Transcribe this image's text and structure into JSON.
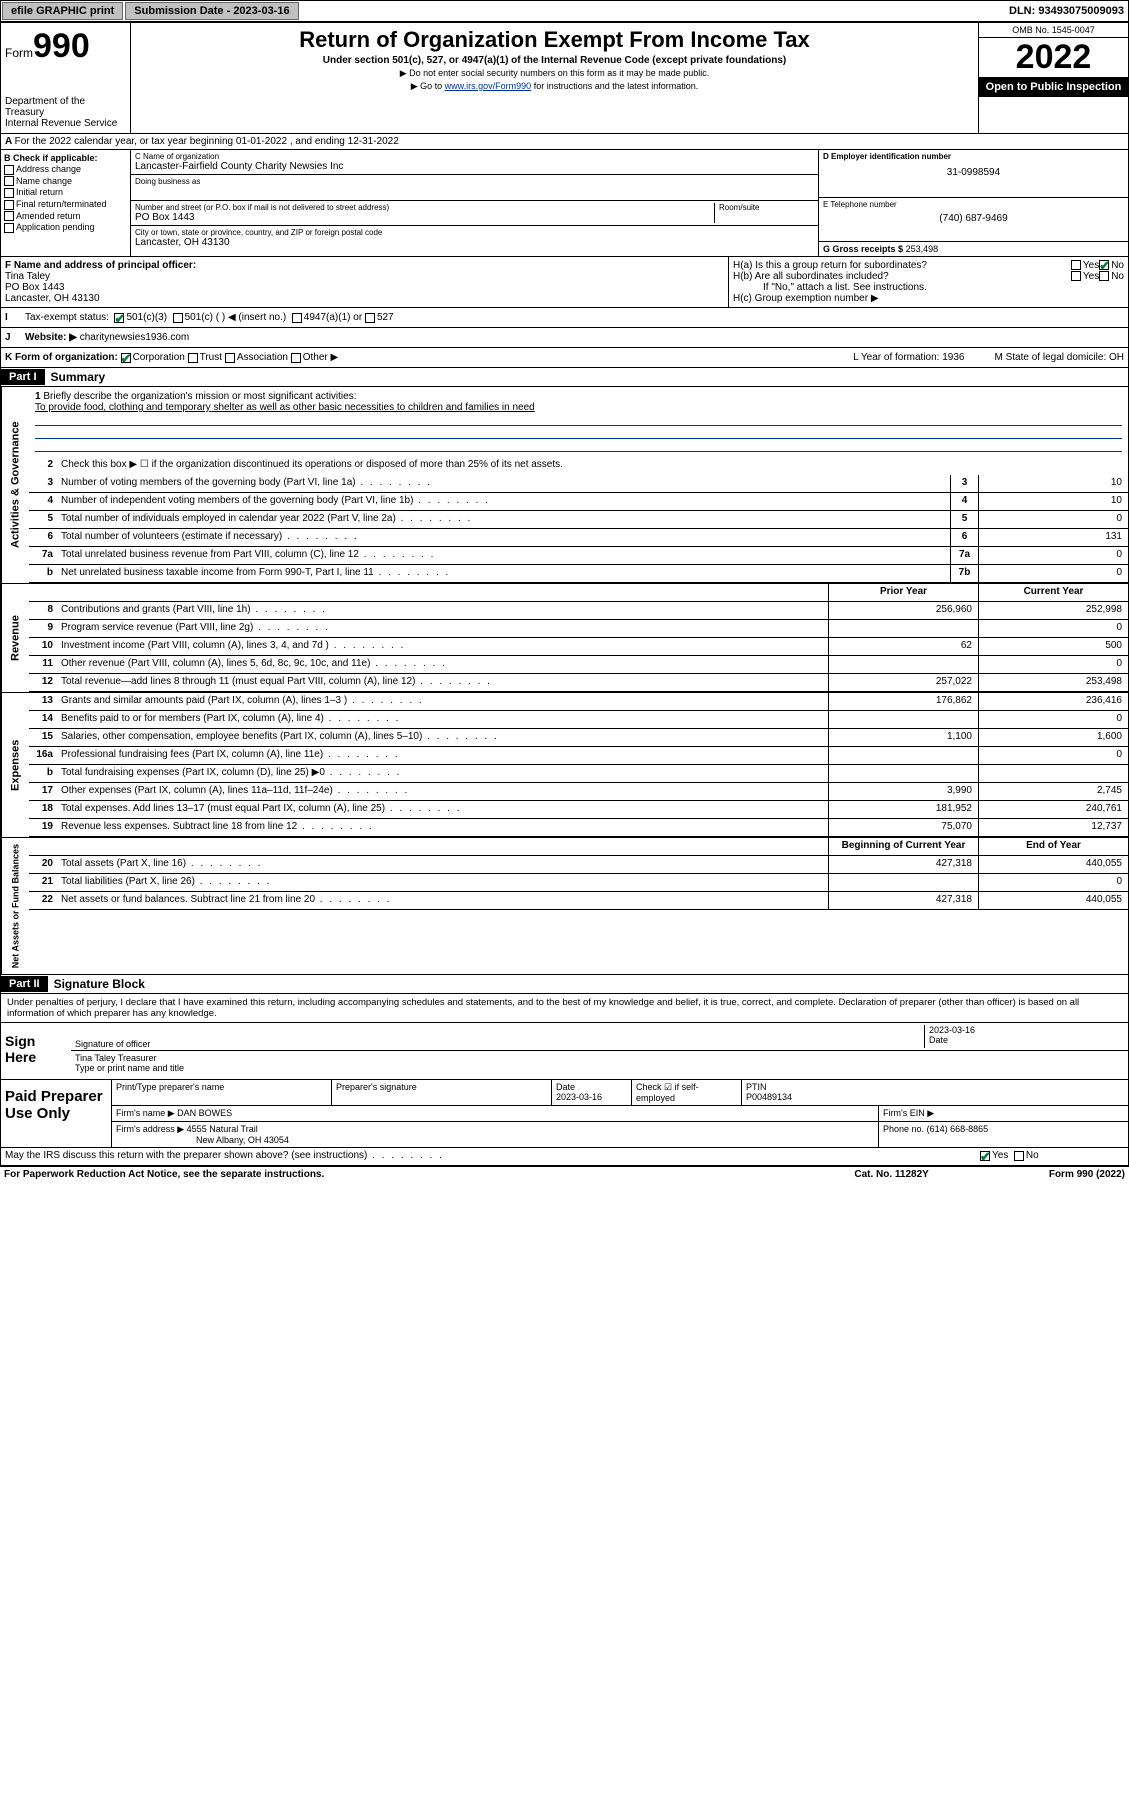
{
  "topbar": {
    "efile": "efile GRAPHIC print",
    "submission_label": "Submission Date - 2023-03-16",
    "dln": "DLN: 93493075009093"
  },
  "header": {
    "form_label": "Form",
    "form_number": "990",
    "dept": "Department of the Treasury",
    "irs": "Internal Revenue Service",
    "title": "Return of Organization Exempt From Income Tax",
    "subtitle": "Under section 501(c), 527, or 4947(a)(1) of the Internal Revenue Code (except private foundations)",
    "note1": "▶ Do not enter social security numbers on this form as it may be made public.",
    "note2_pre": "▶ Go to ",
    "note2_link": "www.irs.gov/Form990",
    "note2_post": " for instructions and the latest information.",
    "omb": "OMB No. 1545-0047",
    "year": "2022",
    "open": "Open to Public Inspection"
  },
  "period": {
    "text": "For the 2022 calendar year, or tax year beginning 01-01-2022   , and ending 12-31-2022"
  },
  "sectionB": {
    "label": "B Check if applicable:",
    "items": [
      "Address change",
      "Name change",
      "Initial return",
      "Final return/terminated",
      "Amended return",
      "Application pending"
    ]
  },
  "sectionC": {
    "name_label": "C Name of organization",
    "name": "Lancaster-Fairfield County Charity Newsies Inc",
    "dba_label": "Doing business as",
    "street_label": "Number and street (or P.O. box if mail is not delivered to street address)",
    "room_label": "Room/suite",
    "street": "PO Box 1443",
    "city_label": "City or town, state or province, country, and ZIP or foreign postal code",
    "city": "Lancaster, OH  43130"
  },
  "sectionD": {
    "label": "D Employer identification number",
    "val": "31-0998594"
  },
  "sectionE": {
    "label": "E Telephone number",
    "val": "(740) 687-9469"
  },
  "sectionG": {
    "label": "G Gross receipts $",
    "val": "253,498"
  },
  "sectionF": {
    "label": "F Name and address of principal officer:",
    "name": "Tina Taley",
    "addr1": "PO Box 1443",
    "addr2": "Lancaster, OH  43130"
  },
  "sectionH": {
    "a": "H(a)  Is this a group return for subordinates?",
    "b": "H(b)  Are all subordinates included?",
    "b_note": "If \"No,\" attach a list. See instructions.",
    "c": "H(c)  Group exemption number ▶"
  },
  "sectionI": {
    "label": "Tax-exempt status:",
    "opt1": "501(c)(3)",
    "opt2": "501(c) (  ) ◀ (insert no.)",
    "opt3": "4947(a)(1) or",
    "opt4": "527"
  },
  "sectionJ": {
    "label": "Website: ▶",
    "val": "charitynewsies1936.com"
  },
  "sectionK": {
    "label": "K Form of organization:",
    "opts": [
      "Corporation",
      "Trust",
      "Association",
      "Other ▶"
    ]
  },
  "sectionL": {
    "label": "L Year of formation: 1936"
  },
  "sectionM": {
    "label": "M State of legal domicile: OH"
  },
  "part1": {
    "hdr": "Part I",
    "title": "Summary",
    "q1_label": "Briefly describe the organization's mission or most significant activities:",
    "q1_text": "To provide food, clothing and temporary shelter as well as other basic necessities to children and families in need",
    "q2": "Check this box ▶ ☐  if the organization discontinued its operations or disposed of more than 25% of its net assets.",
    "lines_gov": [
      {
        "n": "3",
        "t": "Number of voting members of the governing body (Part VI, line 1a)",
        "box": "3",
        "v": "10"
      },
      {
        "n": "4",
        "t": "Number of independent voting members of the governing body (Part VI, line 1b)",
        "box": "4",
        "v": "10"
      },
      {
        "n": "5",
        "t": "Total number of individuals employed in calendar year 2022 (Part V, line 2a)",
        "box": "5",
        "v": "0"
      },
      {
        "n": "6",
        "t": "Total number of volunteers (estimate if necessary)",
        "box": "6",
        "v": "131"
      },
      {
        "n": "7a",
        "t": "Total unrelated business revenue from Part VIII, column (C), line 12",
        "box": "7a",
        "v": "0"
      },
      {
        "n": "b",
        "t": "Net unrelated business taxable income from Form 990-T, Part I, line 11",
        "box": "7b",
        "v": "0"
      }
    ],
    "col_hdr_prior": "Prior Year",
    "col_hdr_current": "Current Year",
    "lines_rev": [
      {
        "n": "8",
        "t": "Contributions and grants (Part VIII, line 1h)",
        "p": "256,960",
        "c": "252,998"
      },
      {
        "n": "9",
        "t": "Program service revenue (Part VIII, line 2g)",
        "p": "",
        "c": "0"
      },
      {
        "n": "10",
        "t": "Investment income (Part VIII, column (A), lines 3, 4, and 7d )",
        "p": "62",
        "c": "500"
      },
      {
        "n": "11",
        "t": "Other revenue (Part VIII, column (A), lines 5, 6d, 8c, 9c, 10c, and 11e)",
        "p": "",
        "c": "0"
      },
      {
        "n": "12",
        "t": "Total revenue—add lines 8 through 11 (must equal Part VIII, column (A), line 12)",
        "p": "257,022",
        "c": "253,498"
      }
    ],
    "lines_exp": [
      {
        "n": "13",
        "t": "Grants and similar amounts paid (Part IX, column (A), lines 1–3 )",
        "p": "176,862",
        "c": "236,416"
      },
      {
        "n": "14",
        "t": "Benefits paid to or for members (Part IX, column (A), line 4)",
        "p": "",
        "c": "0"
      },
      {
        "n": "15",
        "t": "Salaries, other compensation, employee benefits (Part IX, column (A), lines 5–10)",
        "p": "1,100",
        "c": "1,600"
      },
      {
        "n": "16a",
        "t": "Professional fundraising fees (Part IX, column (A), line 11e)",
        "p": "",
        "c": "0"
      },
      {
        "n": "b",
        "t": "Total fundraising expenses (Part IX, column (D), line 25) ▶0",
        "p": "",
        "c": ""
      },
      {
        "n": "17",
        "t": "Other expenses (Part IX, column (A), lines 11a–11d, 11f–24e)",
        "p": "3,990",
        "c": "2,745"
      },
      {
        "n": "18",
        "t": "Total expenses. Add lines 13–17 (must equal Part IX, column (A), line 25)",
        "p": "181,952",
        "c": "240,761"
      },
      {
        "n": "19",
        "t": "Revenue less expenses. Subtract line 18 from line 12",
        "p": "75,070",
        "c": "12,737"
      }
    ],
    "col_hdr_begin": "Beginning of Current Year",
    "col_hdr_end": "End of Year",
    "lines_net": [
      {
        "n": "20",
        "t": "Total assets (Part X, line 16)",
        "p": "427,318",
        "c": "440,055"
      },
      {
        "n": "21",
        "t": "Total liabilities (Part X, line 26)",
        "p": "",
        "c": "0"
      },
      {
        "n": "22",
        "t": "Net assets or fund balances. Subtract line 21 from line 20",
        "p": "427,318",
        "c": "440,055"
      }
    ]
  },
  "part2": {
    "hdr": "Part II",
    "title": "Signature Block",
    "decl": "Under penalties of perjury, I declare that I have examined this return, including accompanying schedules and statements, and to the best of my knowledge and belief, it is true, correct, and complete. Declaration of preparer (other than officer) is based on all information of which preparer has any knowledge.",
    "sign_here": "Sign Here",
    "sig_officer": "Signature of officer",
    "sig_date": "2023-03-16",
    "date_label": "Date",
    "name_title": "Tina Taley Treasurer",
    "name_title_label": "Type or print name and title",
    "paid": "Paid Preparer Use Only",
    "prep_name_label": "Print/Type preparer's name",
    "prep_sig_label": "Preparer's signature",
    "prep_date_label": "Date",
    "prep_date": "2023-03-16",
    "check_self": "Check ☑ if self-employed",
    "ptin_label": "PTIN",
    "ptin": "P00489134",
    "firm_name_label": "Firm's name   ▶",
    "firm_name": "DAN BOWES",
    "firm_ein_label": "Firm's EIN ▶",
    "firm_addr_label": "Firm's address ▶",
    "firm_addr1": "4555 Natural Trail",
    "firm_addr2": "New Albany, OH  43054",
    "phone_label": "Phone no.",
    "phone": "(614) 668-8865",
    "discuss": "May the IRS discuss this return with the preparer shown above? (see instructions)"
  },
  "footer": {
    "left": "For Paperwork Reduction Act Notice, see the separate instructions.",
    "mid": "Cat. No. 11282Y",
    "right": "Form 990 (2022)"
  }
}
